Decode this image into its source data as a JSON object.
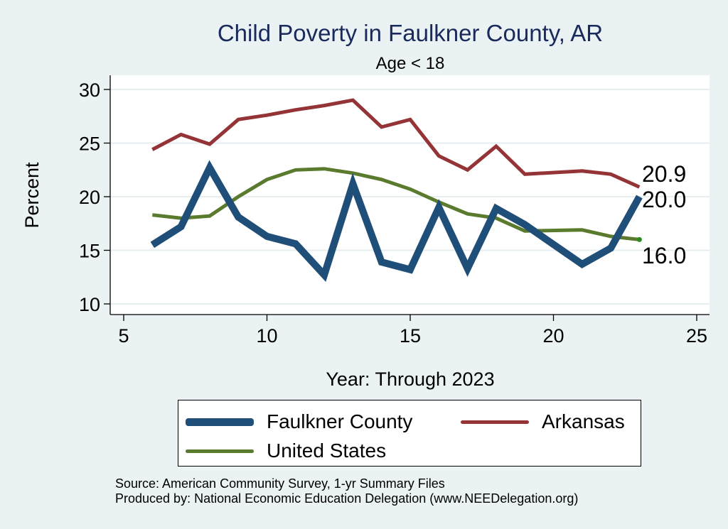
{
  "chart_data": {
    "type": "line",
    "title": "Child Poverty in Faulkner County, AR",
    "subtitle": "Age < 18",
    "xlabel": "Year: Through 2023",
    "ylabel": "Percent",
    "xlim": [
      5,
      25
    ],
    "ylim": [
      10,
      30
    ],
    "xticks": [
      5,
      10,
      15,
      20,
      25
    ],
    "yticks": [
      10,
      15,
      20,
      25,
      30
    ],
    "grid": true,
    "legend_position": "bottom",
    "series": [
      {
        "name": "Faulkner County",
        "color": "#1f4e79",
        "x": [
          6,
          7,
          8,
          9,
          10,
          11,
          12,
          13,
          14,
          15,
          16,
          17,
          18,
          19,
          21,
          22,
          23
        ],
        "y": [
          15.5,
          17.2,
          22.7,
          18.1,
          16.3,
          15.6,
          12.7,
          21.2,
          13.9,
          13.2,
          19.0,
          13.3,
          18.9,
          17.4,
          13.7,
          15.2,
          20.0
        ],
        "end_label": "20.0"
      },
      {
        "name": "Arkansas",
        "color": "#943437",
        "x": [
          6,
          7,
          8,
          9,
          10,
          11,
          12,
          13,
          14,
          15,
          16,
          17,
          18,
          19,
          21,
          22,
          23
        ],
        "y": [
          24.4,
          25.8,
          24.9,
          27.2,
          27.6,
          28.1,
          28.5,
          29.0,
          26.5,
          27.2,
          23.8,
          22.5,
          24.7,
          22.1,
          22.4,
          22.1,
          20.9
        ],
        "end_label": "20.9"
      },
      {
        "name": "United States",
        "color": "#5a7a2e",
        "x": [
          6,
          7,
          8,
          9,
          10,
          11,
          12,
          13,
          14,
          15,
          16,
          17,
          18,
          19,
          21,
          22,
          23
        ],
        "y": [
          18.3,
          18.0,
          18.2,
          20.0,
          21.6,
          22.5,
          22.6,
          22.2,
          21.6,
          20.7,
          19.5,
          18.4,
          18.0,
          16.8,
          16.9,
          16.3,
          16.0
        ],
        "end_label": "16.0"
      }
    ]
  },
  "footer": {
    "source": "Source: American Community Survey, 1-yr Summary Files",
    "produced": "Produced by: National Economic Education Delegation (www.NEEDelegation.org)"
  }
}
